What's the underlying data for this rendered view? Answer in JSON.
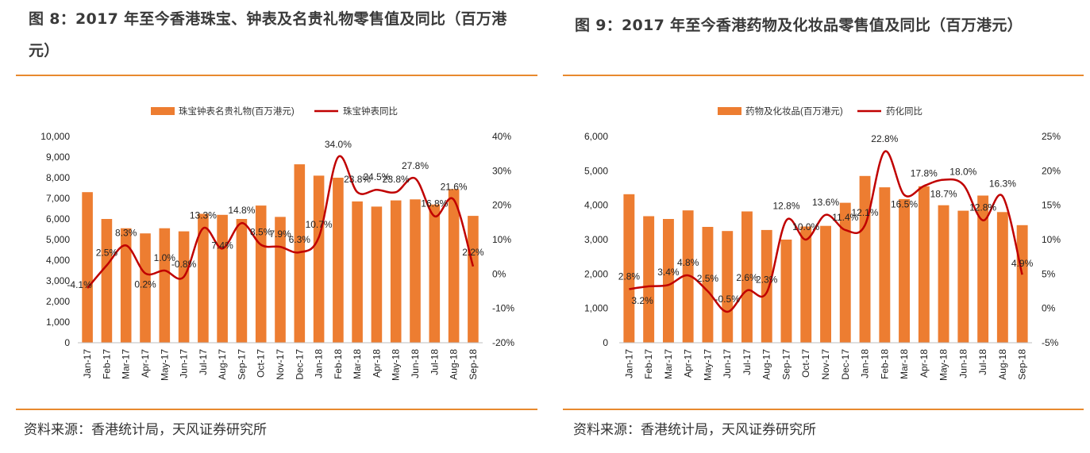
{
  "figures": [
    {
      "title": "图 8：2017 年至今香港珠宝、钟表及名贵礼物零售值及同比（百万港元）",
      "source": "资料来源：香港统计局，天风证券研究所"
    },
    {
      "title": "图 9：2017 年至今香港药物及化妆品零售值及同比（百万港元）",
      "source": "资料来源：香港统计局，天风证券研究所"
    }
  ],
  "colors": {
    "bar": "#ed7d31",
    "line": "#c00000",
    "rule": "#e8892e"
  },
  "chart_data": [
    {
      "type": "bar",
      "title": "",
      "categories": [
        "Jan-17",
        "Feb-17",
        "Mar-17",
        "Apr-17",
        "May-17",
        "Jun-17",
        "Jul-17",
        "Aug-17",
        "Sep-17",
        "Oct-17",
        "Nov-17",
        "Dec-17",
        "Jan-18",
        "Feb-18",
        "Mar-18",
        "Apr-18",
        "May-18",
        "Jun-18",
        "Jul-18",
        "Aug-18",
        "Sep-18"
      ],
      "series": [
        {
          "name": "珠宝钟表名贵礼物(百万港元)",
          "type": "bar",
          "axis": "left",
          "values": [
            7300,
            6000,
            5550,
            5300,
            5550,
            5400,
            6250,
            6200,
            6000,
            6650,
            6100,
            8650,
            8100,
            8000,
            6850,
            6600,
            6900,
            6950,
            6700,
            7450,
            6150
          ]
        },
        {
          "name": "珠宝钟表同比",
          "type": "line",
          "axis": "right",
          "values": [
            -4.1,
            2.5,
            8.3,
            0.2,
            1.0,
            -0.8,
            13.3,
            7.4,
            14.8,
            8.5,
            7.9,
            6.3,
            10.7,
            34.0,
            23.8,
            24.5,
            23.8,
            27.8,
            16.8,
            21.6,
            2.2
          ],
          "labels": [
            "-4.1%",
            "2.5%",
            "8.3%",
            "0.2%",
            "1.0%",
            "-0.8%",
            "13.3%",
            "7.4%",
            "14.8%",
            "8.5%",
            "7.9%",
            "6.3%",
            "10.7%",
            "34.0%",
            "23.8%",
            "24.5%",
            "23.8%",
            "27.8%",
            "16.8%",
            "21.6%",
            "2.2%"
          ]
        }
      ],
      "left_ticks": [
        "0",
        "1,000",
        "2,000",
        "3,000",
        "4,000",
        "5,000",
        "6,000",
        "7,000",
        "8,000",
        "9,000",
        "10,000"
      ],
      "right_ticks": [
        "-20%",
        "-10%",
        "0%",
        "10%",
        "20%",
        "30%",
        "40%"
      ],
      "ylim": [
        0,
        10000
      ],
      "y2lim": [
        -20,
        40
      ],
      "legend": "top"
    },
    {
      "type": "bar",
      "title": "",
      "categories": [
        "Jan-17",
        "Feb-17",
        "Mar-17",
        "Apr-17",
        "May-17",
        "Jun-17",
        "Jul-17",
        "Aug-17",
        "Sep-17",
        "Oct-17",
        "Nov-17",
        "Dec-17",
        "Jan-18",
        "Feb-18",
        "Mar-18",
        "Apr-18",
        "May-18",
        "Jun-18",
        "Jul-18",
        "Aug-18",
        "Sep-18"
      ],
      "series": [
        {
          "name": "药物及化妆品(百万港元)",
          "type": "bar",
          "axis": "left",
          "values": [
            4320,
            3680,
            3600,
            3850,
            3370,
            3250,
            3820,
            3280,
            3000,
            3380,
            3400,
            4070,
            4850,
            4520,
            4180,
            4550,
            4000,
            3840,
            4280,
            3800,
            3420
          ]
        },
        {
          "name": "药化同比",
          "type": "line",
          "axis": "right",
          "values": [
            2.8,
            3.2,
            3.4,
            4.8,
            2.5,
            -0.5,
            2.6,
            2.3,
            12.8,
            10.0,
            13.6,
            11.4,
            12.1,
            22.8,
            16.5,
            17.8,
            18.7,
            18.0,
            12.8,
            16.3,
            4.9
          ],
          "labels": [
            "2.8%",
            "3.2%",
            "3.4%",
            "4.8%",
            "2.5%",
            "-0.5%",
            "2.6%",
            "2.3%",
            "12.8%",
            "10.0%",
            "13.6%",
            "11.4%",
            "12.1%",
            "22.8%",
            "16.5%",
            "17.8%",
            "18.7%",
            "18.0%",
            "12.8%",
            "16.3%",
            "4.9%"
          ]
        }
      ],
      "left_ticks": [
        "0",
        "1,000",
        "2,000",
        "3,000",
        "4,000",
        "5,000",
        "6,000"
      ],
      "right_ticks": [
        "-5%",
        "0%",
        "5%",
        "10%",
        "15%",
        "20%",
        "25%"
      ],
      "ylim": [
        0,
        6000
      ],
      "y2lim": [
        -5,
        25
      ],
      "legend": "top"
    }
  ]
}
